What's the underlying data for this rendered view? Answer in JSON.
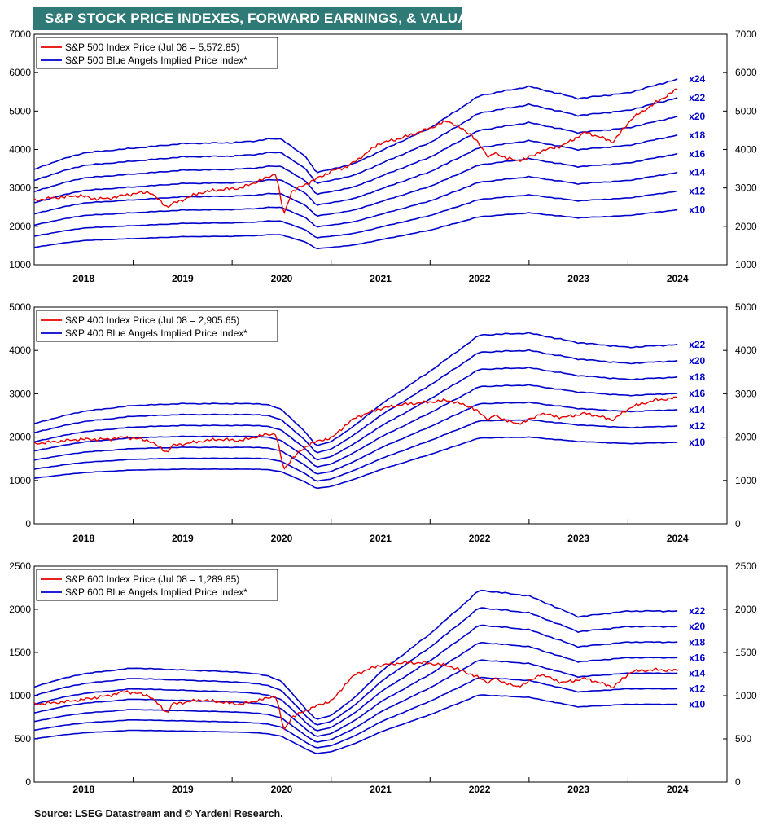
{
  "page": {
    "title": "S&P STOCK PRICE INDEXES, FORWARD EARNINGS, & VALUATION",
    "source": "Source: LSEG Datastream and © Yardeni Research."
  },
  "colors": {
    "banner": "#2f7a76",
    "price": "#e60000",
    "implied": "#0000cc",
    "axis": "#000000"
  },
  "chart_data": [
    {
      "type": "line",
      "title": "",
      "xlabel": "",
      "ylabel": "",
      "x_ticks": [
        "2018",
        "2019",
        "2020",
        "2021",
        "2022",
        "2023",
        "2024"
      ],
      "xlim": [
        2017.5,
        2024.5
      ],
      "ylim": [
        1000,
        7000
      ],
      "y_ticks": [
        1000,
        2000,
        3000,
        4000,
        5000,
        6000,
        7000
      ],
      "grid": false,
      "legend_position": "top-left",
      "legend": [
        "S&P 500 Index Price (Jul 08 = 5,572.85)",
        "S&P 500 Blue Angels Implied Price Index*"
      ],
      "price": {
        "name": "S&P 500 Index Price (Jul 08 = 5,572.85)",
        "x": [
          2017.5,
          2017.75,
          2018.0,
          2018.15,
          2018.3,
          2018.5,
          2018.75,
          2018.95,
          2019.0,
          2019.3,
          2019.5,
          2019.75,
          2020.0,
          2020.13,
          2020.2,
          2020.22,
          2020.3,
          2020.5,
          2020.75,
          2020.9,
          2021.0,
          2021.25,
          2021.5,
          2021.75,
          2022.0,
          2022.25,
          2022.45,
          2022.5,
          2022.75,
          2022.95,
          2023.0,
          2023.25,
          2023.5,
          2023.8,
          2024.0,
          2024.25,
          2024.5
        ],
        "y": [
          2680,
          2750,
          2800,
          2720,
          2720,
          2820,
          2900,
          2500,
          2580,
          2870,
          2950,
          3000,
          3230,
          3380,
          2500,
          2320,
          2900,
          3150,
          3450,
          3550,
          3700,
          4150,
          4300,
          4500,
          4750,
          4400,
          3800,
          3900,
          3700,
          3850,
          3950,
          4100,
          4450,
          4200,
          4800,
          5200,
          5573
        ]
      },
      "implied": {
        "name": "S&P 500 Blue Angels Implied Price Index*",
        "multiples": [
          10,
          12,
          14,
          16,
          18,
          20,
          22,
          24
        ],
        "labels": [
          "x10",
          "x12",
          "x14",
          "x16",
          "x18",
          "x20",
          "x22",
          "x24"
        ],
        "forward_eps": {
          "x": [
            2017.5,
            2017.75,
            2018.0,
            2018.5,
            2019.0,
            2019.5,
            2019.75,
            2019.85,
            2020.0,
            2020.25,
            2020.35,
            2020.5,
            2020.75,
            2021.0,
            2021.5,
            2022.0,
            2022.5,
            2023.0,
            2023.5,
            2024.0,
            2024.5
          ],
          "y": [
            145,
            155,
            163,
            168,
            173,
            174,
            176,
            178,
            178,
            158,
            142,
            145,
            152,
            165,
            190,
            225,
            235,
            222,
            228,
            243,
            262
          ]
        }
      }
    },
    {
      "type": "line",
      "title": "",
      "xlabel": "",
      "ylabel": "",
      "x_ticks": [
        "2018",
        "2019",
        "2020",
        "2021",
        "2022",
        "2023",
        "2024"
      ],
      "xlim": [
        2017.5,
        2024.5
      ],
      "ylim": [
        0,
        5000
      ],
      "y_ticks": [
        0,
        1000,
        2000,
        3000,
        4000,
        5000
      ],
      "grid": false,
      "legend_position": "top-left",
      "legend": [
        "S&P 400 Index Price (Jul 08 = 2,905.65)",
        "S&P 400 Blue Angels Implied Price Index*"
      ],
      "price": {
        "name": "S&P 400 Index Price (Jul 08 = 2,905.65)",
        "x": [
          2017.5,
          2017.75,
          2018.0,
          2018.3,
          2018.5,
          2018.75,
          2018.95,
          2019.0,
          2019.3,
          2019.5,
          2019.75,
          2020.0,
          2020.13,
          2020.2,
          2020.22,
          2020.3,
          2020.5,
          2020.75,
          2020.9,
          2021.0,
          2021.25,
          2021.5,
          2021.75,
          2022.0,
          2022.25,
          2022.45,
          2022.5,
          2022.75,
          2022.95,
          2023.0,
          2023.25,
          2023.5,
          2023.8,
          2024.0,
          2024.25,
          2024.5
        ],
        "y": [
          1850,
          1900,
          1950,
          1950,
          2000,
          1920,
          1650,
          1800,
          1900,
          1950,
          1920,
          2050,
          2080,
          1400,
          1250,
          1500,
          1850,
          2000,
          2300,
          2450,
          2650,
          2750,
          2800,
          2850,
          2700,
          2400,
          2500,
          2300,
          2450,
          2550,
          2450,
          2550,
          2400,
          2700,
          2850,
          2906
        ]
      },
      "implied": {
        "name": "S&P 400 Blue Angels Implied Price Index*",
        "multiples": [
          10,
          12,
          14,
          16,
          18,
          20,
          22
        ],
        "labels": [
          "x10",
          "x12",
          "x14",
          "x16",
          "x18",
          "x20",
          "x22"
        ],
        "forward_eps": {
          "x": [
            2017.5,
            2017.75,
            2018.0,
            2018.5,
            2019.0,
            2019.5,
            2019.75,
            2019.85,
            2020.0,
            2020.25,
            2020.35,
            2020.5,
            2020.75,
            2021.0,
            2021.5,
            2022.0,
            2022.5,
            2023.0,
            2023.5,
            2024.0,
            2024.5
          ],
          "y": [
            105,
            112,
            118,
            124,
            126,
            126,
            126,
            125,
            120,
            95,
            82,
            86,
            104,
            125,
            160,
            198,
            200,
            190,
            185,
            188,
            194
          ]
        }
      }
    },
    {
      "type": "line",
      "title": "",
      "xlabel": "",
      "ylabel": "",
      "x_ticks": [
        "2018",
        "2019",
        "2020",
        "2021",
        "2022",
        "2023",
        "2024"
      ],
      "xlim": [
        2017.5,
        2024.5
      ],
      "ylim": [
        0,
        2500
      ],
      "y_ticks": [
        0,
        500,
        1000,
        1500,
        2000,
        2500
      ],
      "grid": false,
      "legend_position": "top-left",
      "legend": [
        "S&P 600 Index Price (Jul 08 = 1,289.85)",
        "S&P 600 Blue Angels Implied Price Index*"
      ],
      "price": {
        "name": "S&P 600 Index Price (Jul 08 = 1,289.85)",
        "x": [
          2017.5,
          2017.75,
          2018.0,
          2018.3,
          2018.5,
          2018.75,
          2018.95,
          2019.0,
          2019.3,
          2019.5,
          2019.75,
          2020.0,
          2020.13,
          2020.2,
          2020.22,
          2020.3,
          2020.5,
          2020.75,
          2020.9,
          2021.0,
          2021.25,
          2021.5,
          2021.75,
          2022.0,
          2022.25,
          2022.45,
          2022.5,
          2022.75,
          2022.95,
          2023.0,
          2023.25,
          2023.5,
          2023.8,
          2024.0,
          2024.25,
          2024.5
        ],
        "y": [
          900,
          920,
          950,
          1000,
          1050,
          1000,
          800,
          900,
          950,
          930,
          900,
          960,
          1000,
          680,
          600,
          750,
          850,
          950,
          1150,
          1250,
          1350,
          1380,
          1380,
          1350,
          1250,
          1150,
          1200,
          1100,
          1200,
          1250,
          1150,
          1200,
          1100,
          1280,
          1300,
          1290
        ]
      },
      "implied": {
        "name": "S&P 600 Blue Angels Implied Price Index*",
        "multiples": [
          10,
          12,
          14,
          16,
          18,
          20,
          22
        ],
        "labels": [
          "x10",
          "x12",
          "x14",
          "x16",
          "x18",
          "x20",
          "x22"
        ],
        "forward_eps": {
          "x": [
            2017.5,
            2017.75,
            2018.0,
            2018.5,
            2019.0,
            2019.5,
            2019.75,
            2019.85,
            2020.0,
            2020.25,
            2020.35,
            2020.5,
            2020.75,
            2021.0,
            2021.5,
            2022.0,
            2022.5,
            2023.0,
            2023.5,
            2024.0,
            2024.5
          ],
          "y": [
            50,
            54,
            57,
            60,
            59,
            58,
            57,
            56,
            53,
            38,
            33,
            35,
            45,
            58,
            78,
            101,
            98,
            87,
            90,
            90,
            92
          ]
        }
      }
    }
  ]
}
